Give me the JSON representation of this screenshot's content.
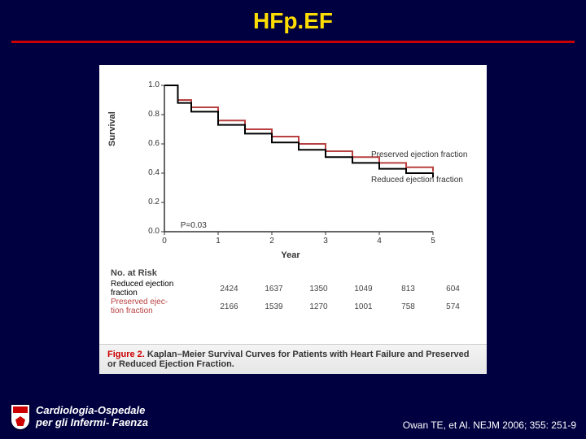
{
  "slide": {
    "title": "HFp.EF",
    "bg_color": "#000040",
    "title_color": "#ffdd00",
    "rule_color": "#cc0000"
  },
  "chart": {
    "type": "line",
    "ylabel": "Survival",
    "xlabel": "Year",
    "xlim": [
      0,
      5
    ],
    "ylim": [
      0,
      1.0
    ],
    "xticks": [
      0,
      1,
      2,
      3,
      4,
      5
    ],
    "yticks": [
      0,
      0.2,
      0.4,
      0.6,
      0.8,
      1.0
    ],
    "line_width": 2,
    "background_color": "#ffffff",
    "axis_color": "#333333",
    "tick_fontsize": 10,
    "label_fontsize": 11,
    "pvalue": "P=0.03",
    "series": [
      {
        "name": "Preserved ejection fraction",
        "color": "#b84040",
        "x": [
          0,
          0.25,
          0.5,
          1,
          1.5,
          2,
          2.5,
          3,
          3.5,
          4,
          4.5,
          5
        ],
        "y": [
          1.0,
          0.9,
          0.85,
          0.76,
          0.7,
          0.65,
          0.6,
          0.55,
          0.51,
          0.47,
          0.44,
          0.41
        ],
        "label_x": 4.0,
        "label_y": 0.52
      },
      {
        "name": "Reduced ejection fraction",
        "color": "#000000",
        "x": [
          0,
          0.25,
          0.5,
          1,
          1.5,
          2,
          2.5,
          3,
          3.5,
          4,
          4.5,
          5
        ],
        "y": [
          1.0,
          0.88,
          0.82,
          0.73,
          0.67,
          0.61,
          0.56,
          0.51,
          0.47,
          0.43,
          0.4,
          0.37
        ],
        "label_x": 4.0,
        "label_y": 0.35
      }
    ]
  },
  "risk_table": {
    "title": "No. at Risk",
    "rows": [
      {
        "label_line1": "Reduced ejection",
        "label_line2": "fraction",
        "color": "#000000",
        "values": [
          2424,
          1637,
          1350,
          1049,
          813,
          604
        ]
      },
      {
        "label_line1": "Preserved ejec-",
        "label_line2": "tion fraction",
        "color": "#b84040",
        "values": [
          2166,
          1539,
          1270,
          1001,
          758,
          574
        ]
      }
    ]
  },
  "caption": {
    "fig_label": "Figure 2.",
    "fig_title": "Kaplan–Meier Survival Curves for Patients with Heart Failure and Preserved or Reduced Ejection Fraction."
  },
  "footer": {
    "institution_line1": "Cardiologia-Ospedale",
    "institution_line2": "per gli Infermi- Faenza",
    "citation": "Owan TE, et Al. NEJM 2006; 355: 251-9"
  }
}
